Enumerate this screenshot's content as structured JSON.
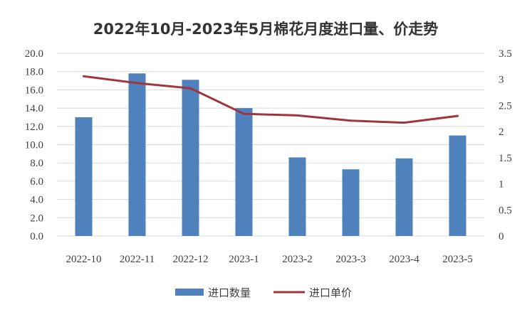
{
  "chart_data": {
    "type": "bar",
    "title": "2022年10月-2023年5月棉花月度进口量、价走势",
    "categories": [
      "2022-10",
      "2022-11",
      "2022-12",
      "2023-1",
      "2023-2",
      "2023-3",
      "2023-4",
      "2023-5"
    ],
    "series": [
      {
        "name": "进口数量",
        "type": "bar",
        "axis": "left",
        "color": "#4f81bd",
        "values": [
          13.0,
          17.8,
          17.1,
          14.0,
          8.6,
          7.3,
          8.5,
          11.0
        ]
      },
      {
        "name": "进口单价",
        "type": "line",
        "axis": "right",
        "color": "#a0363c",
        "values": [
          3.06,
          2.93,
          2.83,
          2.34,
          2.31,
          2.21,
          2.17,
          2.3
        ]
      }
    ],
    "y_left": {
      "lim": [
        0,
        20
      ],
      "ticks": [
        "0.0",
        "2.0",
        "4.0",
        "6.0",
        "8.0",
        "10.0",
        "12.0",
        "14.0",
        "16.0",
        "18.0",
        "20.0"
      ]
    },
    "y_right": {
      "lim": [
        0,
        3.5
      ],
      "ticks": [
        "0",
        "0.5",
        "1",
        "1.5",
        "2",
        "2.5",
        "3",
        "3.5"
      ]
    },
    "grid": true,
    "legend_position": "bottom"
  }
}
